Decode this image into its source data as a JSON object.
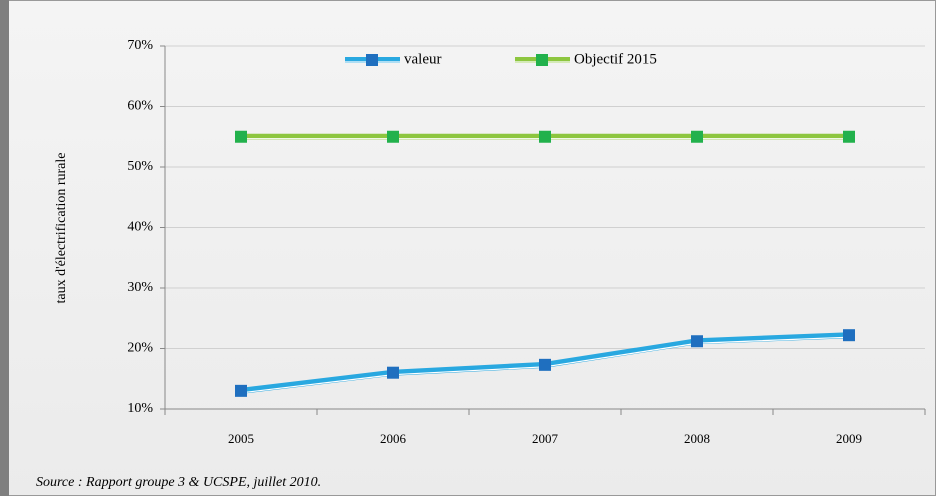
{
  "chart_data": {
    "type": "line",
    "y_label": "taux d'électrification rurale",
    "source": "Source : Rapport groupe 3 & UCSPE, juillet 2010.",
    "categories": [
      "2005",
      "2006",
      "2007",
      "2008",
      "2009"
    ],
    "series": [
      {
        "name": "valeur",
        "color": "#29a8e0",
        "marker_color": "#1f6fbf",
        "values": [
          13,
          16,
          17.3,
          21.2,
          22.2
        ]
      },
      {
        "name": "Objectif 2015",
        "color": "#8dc63f",
        "marker_color": "#22b14c",
        "values": [
          55,
          55,
          55,
          55,
          55
        ]
      }
    ],
    "ylim": [
      10,
      70
    ],
    "yticks": [
      {
        "value": 10,
        "label": "10%"
      },
      {
        "value": 20,
        "label": "20%"
      },
      {
        "value": 30,
        "label": "30%"
      },
      {
        "value": 40,
        "label": "40%"
      },
      {
        "value": 50,
        "label": "50%"
      },
      {
        "value": 60,
        "label": "60%"
      },
      {
        "value": 70,
        "label": "70%"
      }
    ],
    "grid": true,
    "legend": "top"
  }
}
